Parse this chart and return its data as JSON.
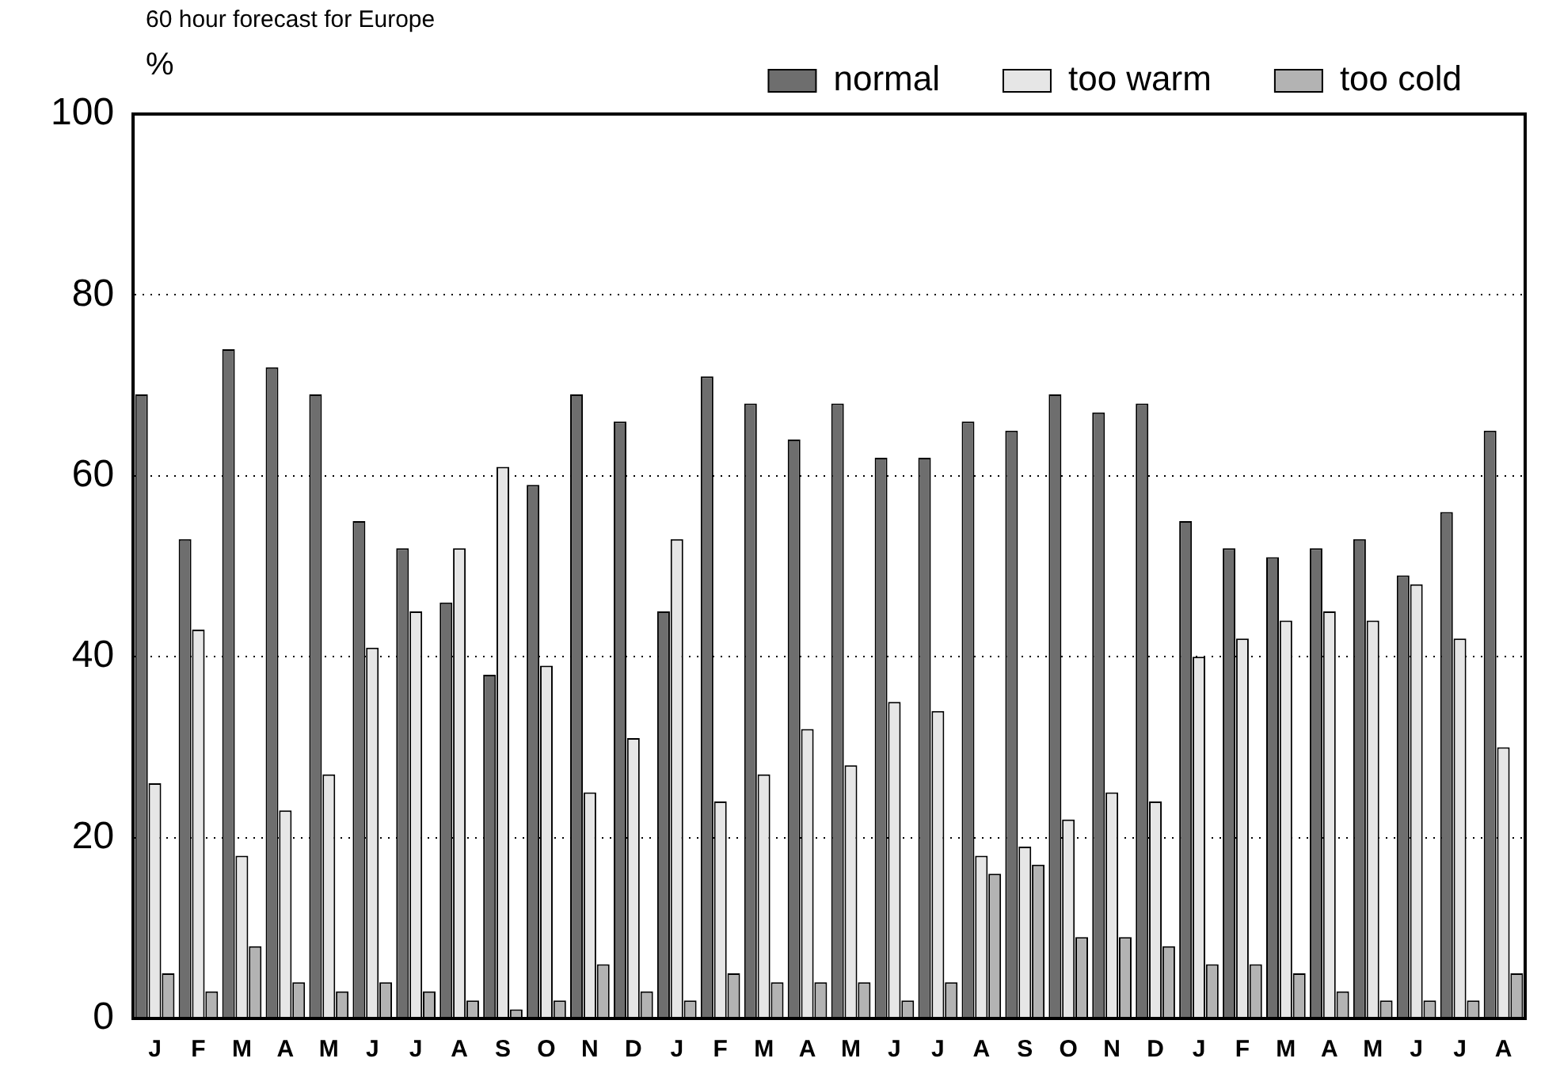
{
  "chart_data": {
    "type": "bar",
    "title": "60 hour forecast for Europe",
    "ylabel": "%",
    "categories": [
      "J",
      "F",
      "M",
      "A",
      "M",
      "J",
      "J",
      "A",
      "S",
      "O",
      "N",
      "D",
      "J",
      "F",
      "M",
      "A",
      "M",
      "J",
      "J",
      "A",
      "S",
      "O",
      "N",
      "D",
      "J",
      "F",
      "M",
      "A",
      "M",
      "J",
      "J",
      "A"
    ],
    "series": [
      {
        "name": "normal",
        "color": "#6e6e6e",
        "values": [
          69,
          53,
          74,
          72,
          69,
          55,
          52,
          46,
          38,
          59,
          69,
          66,
          45,
          71,
          68,
          64,
          68,
          62,
          62,
          66,
          65,
          69,
          67,
          68,
          55,
          52,
          51,
          52,
          53,
          49,
          56,
          65
        ]
      },
      {
        "name": "too warm",
        "color": "#e6e6e6",
        "values": [
          26,
          43,
          18,
          23,
          27,
          41,
          45,
          52,
          61,
          39,
          25,
          31,
          53,
          24,
          27,
          32,
          28,
          35,
          34,
          18,
          19,
          22,
          25,
          24,
          40,
          42,
          44,
          45,
          44,
          48,
          42,
          30
        ]
      },
      {
        "name": "too cold",
        "color": "#b3b3b3",
        "values": [
          5,
          3,
          8,
          4,
          3,
          4,
          3,
          2,
          1,
          2,
          6,
          3,
          2,
          5,
          4,
          4,
          4,
          2,
          4,
          16,
          17,
          9,
          9,
          8,
          6,
          6,
          5,
          3,
          2,
          2,
          2,
          5
        ]
      }
    ],
    "ylim": [
      0,
      100
    ],
    "yticks": [
      0,
      20,
      40,
      60,
      80,
      100
    ],
    "grid": "y",
    "legend": "top right"
  }
}
